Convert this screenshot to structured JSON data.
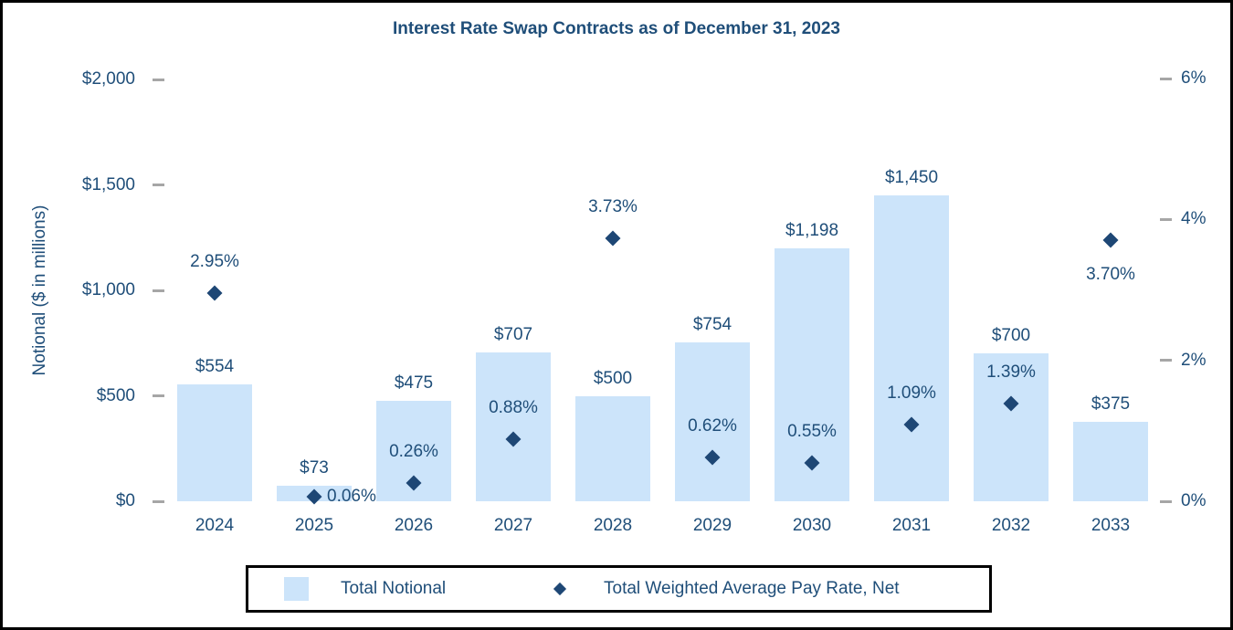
{
  "chart_data": {
    "type": "combo-bar-scatter",
    "title": "Interest Rate Swap Contracts as of December 31, 2023",
    "categories": [
      "2024",
      "2025",
      "2026",
      "2027",
      "2028",
      "2029",
      "2030",
      "2031",
      "2032",
      "2033"
    ],
    "series": [
      {
        "name": "Total Notional",
        "type": "bar",
        "axis": "left",
        "values": [
          554,
          73,
          475,
          707,
          500,
          754,
          1198,
          1450,
          700,
          375
        ],
        "data_labels": [
          "$554",
          "$73",
          "$475",
          "$707",
          "$500",
          "$754",
          "$1,198",
          "$1,450",
          "$700",
          "$375"
        ]
      },
      {
        "name": "Total Weighted Average Pay Rate, Net",
        "type": "scatter",
        "marker": "diamond",
        "axis": "right",
        "values": [
          2.95,
          0.06,
          0.26,
          0.88,
          3.73,
          0.62,
          0.55,
          1.09,
          1.39,
          3.7
        ],
        "data_labels": [
          "2.95%",
          "0.06%",
          "0.26%",
          "0.88%",
          "3.73%",
          "0.62%",
          "0.55%",
          "1.09%",
          "1.39%",
          "3.70%"
        ],
        "data_label_positions": [
          "above",
          "right",
          "above",
          "above",
          "above",
          "above",
          "above",
          "above",
          "above",
          "below"
        ]
      }
    ],
    "left_axis": {
      "title": "Notional ($ in millions)",
      "range": [
        0,
        2000
      ],
      "ticks": [
        {
          "value": 0,
          "label": "$0"
        },
        {
          "value": 500,
          "label": "$500"
        },
        {
          "value": 1000,
          "label": "$1,000"
        },
        {
          "value": 1500,
          "label": "$1,500"
        },
        {
          "value": 2000,
          "label": "$2,000"
        }
      ]
    },
    "right_axis": {
      "range": [
        0,
        6
      ],
      "ticks": [
        {
          "value": 0,
          "label": "0%"
        },
        {
          "value": 2,
          "label": "2%"
        },
        {
          "value": 4,
          "label": "4%"
        },
        {
          "value": 6,
          "label": "6%"
        }
      ]
    },
    "legend": [
      {
        "label": "Total Notional",
        "marker": "square"
      },
      {
        "label": "Total Weighted Average Pay Rate, Net",
        "marker": "diamond"
      }
    ],
    "grid": false,
    "legend_position": "bottom",
    "colors": {
      "bar": "#CCE4FA",
      "marker": "#1E4775",
      "text": "#1F4E79",
      "tick_mark": "#A6A6A6",
      "border": "#000000"
    }
  }
}
